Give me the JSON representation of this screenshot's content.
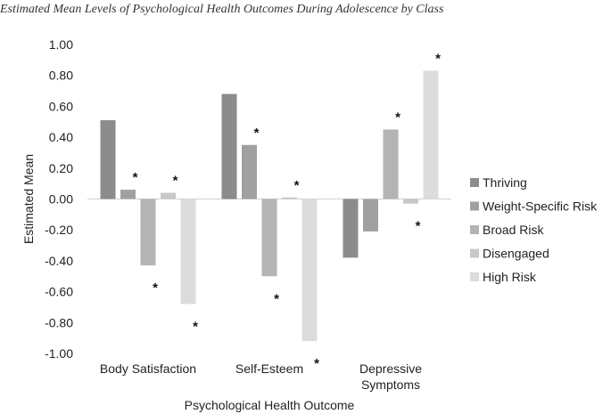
{
  "chart_data": {
    "type": "bar",
    "title": "Estimated Mean Levels of Psychological Health Outcomes During Adolescence by Class",
    "xlabel": "Psychological Health Outcome",
    "ylabel": "Estimated Mean",
    "ylim": [
      -1.0,
      1.0
    ],
    "yticks": [
      "1.00",
      "0.80",
      "0.60",
      "0.40",
      "0.20",
      "0.00",
      "-0.20",
      "-0.40",
      "-0.60",
      "-0.80",
      "-1.00"
    ],
    "ytick_values": [
      1.0,
      0.8,
      0.6,
      0.4,
      0.2,
      0.0,
      -0.2,
      -0.4,
      -0.6,
      -0.8,
      -1.0
    ],
    "categories": [
      {
        "lines": [
          "Body Satisfaction"
        ]
      },
      {
        "lines": [
          "Self-Esteem"
        ]
      },
      {
        "lines": [
          "Depressive",
          "Symptoms"
        ]
      }
    ],
    "significance_marker": "*",
    "legend_position": "right",
    "series": [
      {
        "name": "Thriving",
        "color": "#8c8c8c",
        "values": [
          0.51,
          0.68,
          -0.38
        ],
        "significant": [
          false,
          false,
          false
        ]
      },
      {
        "name": "Weight-Specific Risk",
        "color": "#a0a0a0",
        "values": [
          0.06,
          0.35,
          -0.21
        ],
        "significant": [
          true,
          true,
          false
        ]
      },
      {
        "name": "Broad Risk",
        "color": "#b4b4b4",
        "values": [
          -0.43,
          -0.5,
          0.45
        ],
        "significant": [
          true,
          true,
          true
        ]
      },
      {
        "name": "Disengaged",
        "color": "#c8c8c8",
        "values": [
          0.04,
          0.01,
          -0.03
        ],
        "significant": [
          true,
          true,
          true
        ]
      },
      {
        "name": "High Risk",
        "color": "#dcdcdc",
        "values": [
          -0.68,
          -0.92,
          0.83
        ],
        "significant": [
          true,
          true,
          true
        ]
      }
    ]
  }
}
